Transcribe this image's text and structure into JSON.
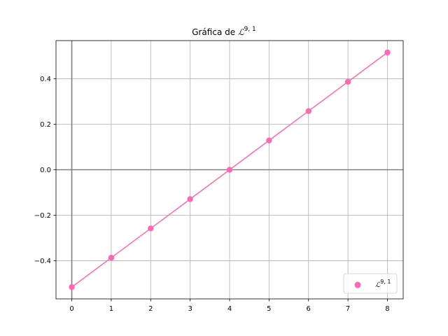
{
  "chart_data": {
    "type": "line",
    "title": {
      "prefix": "Gráfica de ",
      "symbol": "ℒ",
      "superscript": "9, 1"
    },
    "xlabel": "",
    "ylabel": "",
    "x": [
      0,
      1,
      2,
      3,
      4,
      5,
      6,
      7,
      8
    ],
    "series": [
      {
        "name_symbol": "ℒ",
        "name_superscript": "9, 1",
        "values": [
          -0.516,
          -0.387,
          -0.258,
          -0.129,
          0.0,
          0.129,
          0.258,
          0.387,
          0.516
        ],
        "color": "#ff69b4",
        "markers": true
      }
    ],
    "xlim": [
      -0.4,
      8.4
    ],
    "ylim": [
      -0.568,
      0.568
    ],
    "xticks": [
      "0",
      "1",
      "2",
      "3",
      "4",
      "5",
      "6",
      "7",
      "8"
    ],
    "xtick_values": [
      0,
      1,
      2,
      3,
      4,
      5,
      6,
      7,
      8
    ],
    "yticks": [
      "−0.4",
      "−0.2",
      "0.0",
      "0.2",
      "0.4"
    ],
    "ytick_values": [
      -0.4,
      -0.2,
      0.0,
      0.2,
      0.4
    ],
    "grid": true,
    "axis_lines_color": "#808080",
    "grid_color": "#b0b0b0",
    "legend_position": "lower-right"
  }
}
